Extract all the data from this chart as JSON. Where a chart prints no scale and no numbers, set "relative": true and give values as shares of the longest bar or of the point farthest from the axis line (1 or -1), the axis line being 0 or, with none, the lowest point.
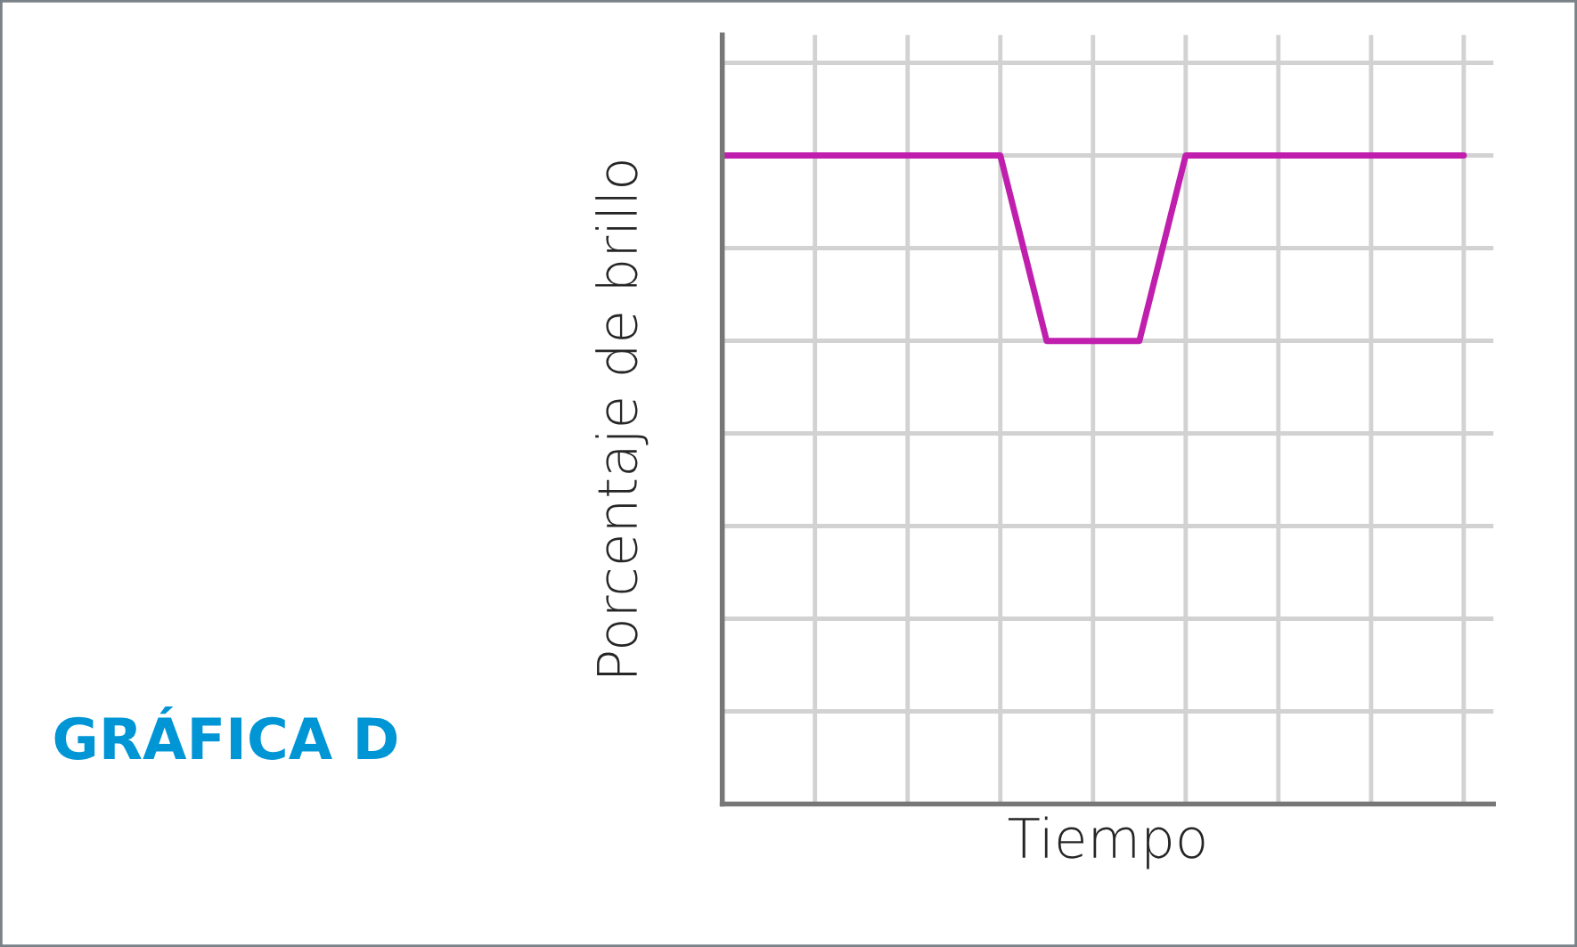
{
  "chart_data": {
    "type": "line",
    "title": "GRÁFICA D",
    "xlabel": "Tiempo",
    "ylabel": "Porcentaje de brillo",
    "relative": true,
    "grid": true,
    "tick_labels": false,
    "legend": false,
    "categories": [
      null,
      null,
      null,
      null,
      null,
      null,
      null,
      null,
      null,
      null,
      null,
      null,
      null,
      null,
      null,
      null,
      null
    ],
    "series": [
      {
        "color": "#c01fae",
        "values": [
          1,
          1,
          1,
          1,
          1,
          1,
          1,
          0.714,
          0.714,
          0.714,
          1,
          1,
          1,
          1,
          1,
          1,
          1
        ]
      }
    ]
  }
}
